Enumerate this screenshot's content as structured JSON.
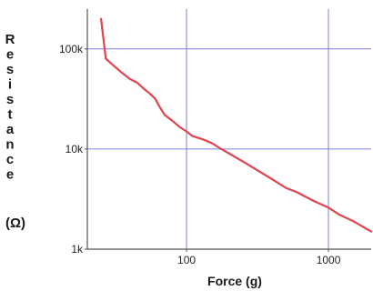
{
  "chart_data": {
    "type": "line",
    "title": "",
    "xlabel": "Force (g)",
    "ylabel": "Resistance",
    "ylabel_unit": "(Ω)",
    "xscale": "log",
    "yscale": "log",
    "xlim": [
      20,
      2000
    ],
    "ylim": [
      1000,
      250000
    ],
    "grid": true,
    "legend": "none",
    "x_tick_values": [
      100,
      1000
    ],
    "x_tick_labels": [
      "100",
      "1000"
    ],
    "y_tick_values": [
      1000,
      10000,
      100000
    ],
    "y_tick_labels": [
      "1k",
      "10k",
      "100k"
    ],
    "colors": {
      "line": "#e0454f",
      "grid": "#7b7be6",
      "axis": "#555555",
      "plot_background": "#ffffff"
    },
    "series": [
      {
        "x": [
          25,
          27,
          30,
          35,
          40,
          45,
          50,
          55,
          60,
          65,
          70,
          80,
          90,
          100,
          110,
          130,
          150,
          170,
          200,
          250,
          300,
          400,
          500,
          600,
          700,
          800,
          1000,
          1200,
          1500,
          2000
        ],
        "y": [
          200000,
          80000,
          70000,
          58000,
          50000,
          46000,
          40000,
          36000,
          32000,
          26000,
          22000,
          19000,
          16500,
          15000,
          13500,
          12500,
          11500,
          10300,
          9000,
          7500,
          6400,
          5000,
          4100,
          3700,
          3300,
          3000,
          2600,
          2200,
          1900,
          1500
        ]
      }
    ]
  }
}
